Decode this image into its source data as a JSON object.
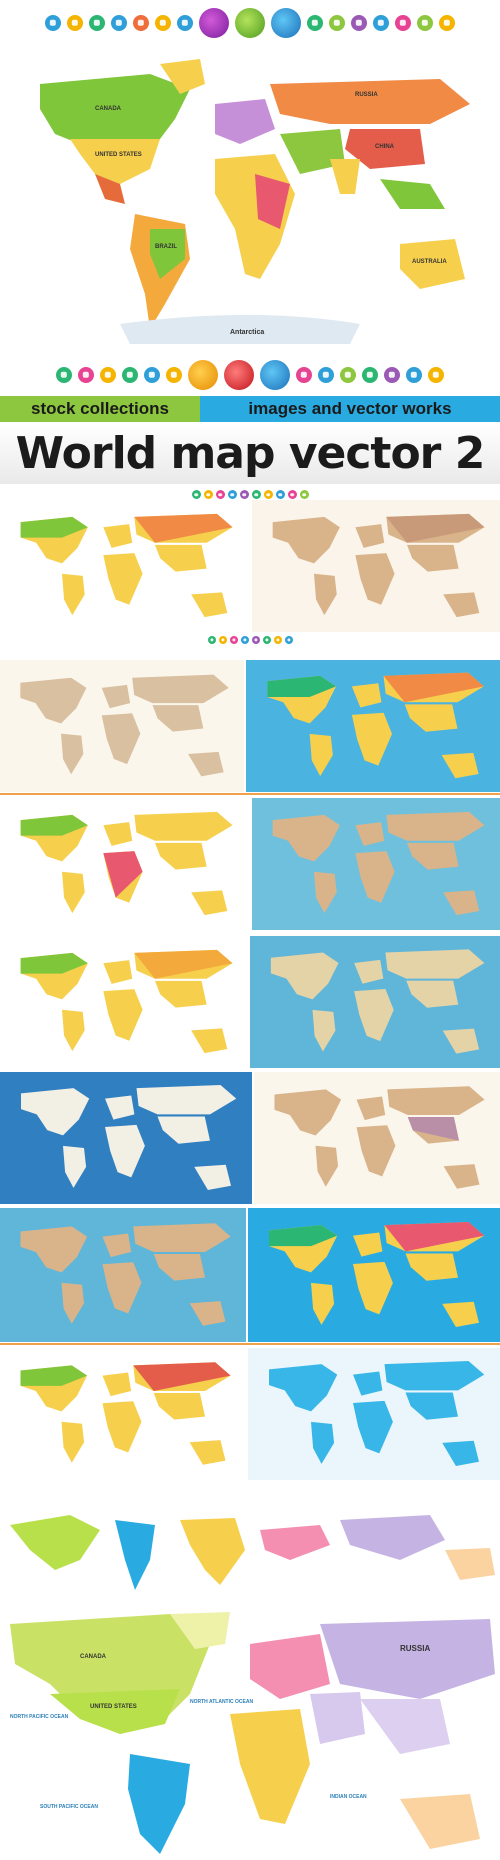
{
  "banner": {
    "tag_left": "stock collections",
    "tag_right": "images and vector works",
    "title": "World map vector 2"
  },
  "hero_map": {
    "labels": {
      "russia": "RUSSIA",
      "united_states": "UNITED STATES",
      "brazil": "BRAZIL",
      "china": "CHINA",
      "australia": "AUSTRALIA",
      "antarctica": "Antarctica",
      "canada": "CANADA"
    }
  },
  "bottom_map": {
    "labels": {
      "canada": "CANADA",
      "russia": "RUSSIA",
      "united_states": "UNITED STATES",
      "north_pacific": "NORTH PACIFIC OCEAN",
      "north_atlantic": "NORTH ATLANTIC OCEAN",
      "south_pacific": "SOUTH PACIFIC OCEAN",
      "indian_ocean": "INDIAN OCEAN"
    }
  },
  "colors": {
    "green_tag": "#8dc63f",
    "blue_tag": "#29abe2",
    "ocean_blue": "#4ab3e0",
    "divider": "#f0a24a"
  }
}
